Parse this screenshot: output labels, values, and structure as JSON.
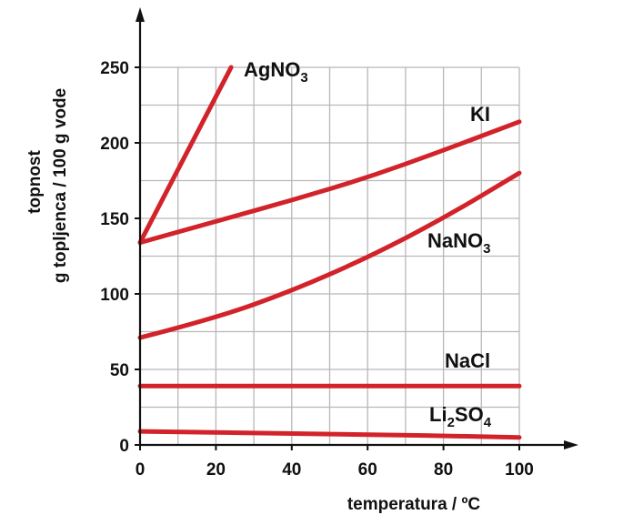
{
  "chart_data": {
    "type": "line",
    "title": "",
    "xlabel": "temperatura / ºC",
    "ylabel_line1": "topnost",
    "ylabel_line2": "g topljenca / 100 g vode",
    "xlim": [
      0,
      100
    ],
    "ylim": [
      0,
      250
    ],
    "xticks": [
      0,
      20,
      40,
      60,
      80,
      100
    ],
    "yticks": [
      0,
      50,
      100,
      150,
      200,
      250
    ],
    "grid": true,
    "grid_x_step": 10,
    "grid_y_step": 25,
    "line_color": "#d2232a",
    "series": [
      {
        "id": "agno3",
        "name": "AgNO3",
        "label_base": "AgNO",
        "label_sub": "3",
        "label_post": "",
        "x": [
          0,
          24
        ],
        "y": [
          134,
          250
        ]
      },
      {
        "id": "ki",
        "name": "KI",
        "label_base": "KI",
        "label_sub": "",
        "label_post": "",
        "x": [
          0,
          20,
          40,
          60,
          80,
          100
        ],
        "y": [
          134,
          148,
          162,
          177,
          195,
          214
        ]
      },
      {
        "id": "nano3",
        "name": "NaNO3",
        "label_base": "NaNO",
        "label_sub": "3",
        "label_post": "",
        "x": [
          0,
          20,
          40,
          60,
          80,
          100
        ],
        "y": [
          71,
          84,
          102,
          124,
          150,
          180
        ]
      },
      {
        "id": "nacl",
        "name": "NaCl",
        "label_base": "NaCl",
        "label_sub": "",
        "label_post": "",
        "x": [
          0,
          100
        ],
        "y": [
          39,
          39
        ]
      },
      {
        "id": "li2so4",
        "name": "Li2SO4",
        "label_base": "Li",
        "label_sub": "2",
        "label_post": "SO",
        "label_sub2": "4",
        "x": [
          0,
          50,
          100
        ],
        "y": [
          9,
          7.5,
          5
        ]
      }
    ]
  }
}
